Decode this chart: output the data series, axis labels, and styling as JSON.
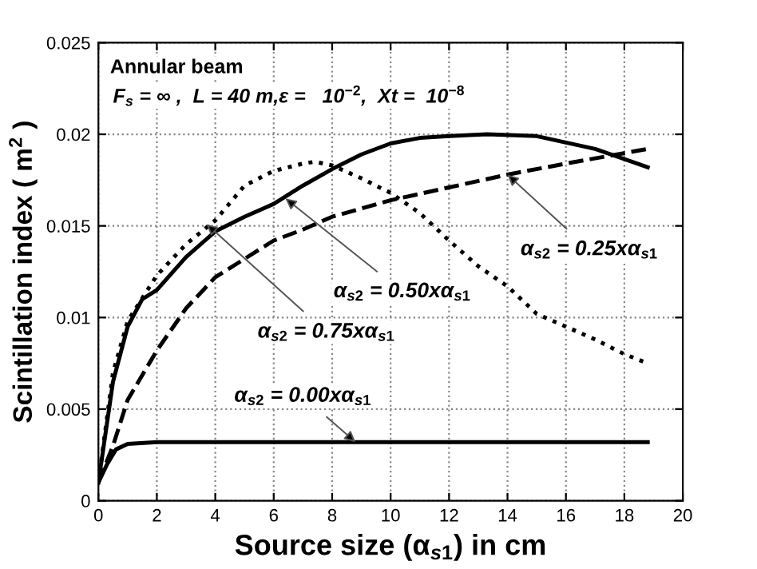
{
  "chart_data": {
    "type": "line",
    "xlabel": "Source size (α$_{s1}$) in cm",
    "ylabel": "Scintillation index ( m$^{2}$ )",
    "annotations": [
      "Annular beam",
      "F$_{s}$ = ∞ ,  L = 40 m,ε =   10$^{−2}$,  Xt =  10$^{−8}$",
      {
        "text": "α$_{s2}$ = 0.25xα$_{s1}$",
        "x": 14,
        "y": 0.0178
      },
      {
        "text": "α$_{s2}$ = 0.50xα$_{s1}$",
        "x": 6.4,
        "y": 0.0165
      },
      {
        "text": "α$_{s2}$ = 0.75xα$_{s1}$",
        "x": 3.7,
        "y": 0.0151
      },
      {
        "text": "α$_{s2}$ = 0.00xα$_{s1}$",
        "x": 8.8,
        "y": 0.0032
      }
    ],
    "series": [
      {
        "color": "#000000",
        "line_style": "solid",
        "x": [
          0,
          0.5,
          1,
          1.5,
          2,
          3,
          4,
          5,
          6,
          7,
          8,
          9,
          10,
          11,
          12,
          13.3,
          15,
          17,
          18.8
        ],
        "values": [
          0.001,
          0.0065,
          0.0095,
          0.011,
          0.0115,
          0.0133,
          0.0147,
          0.0155,
          0.0162,
          0.0172,
          0.0181,
          0.0189,
          0.0195,
          0.0198,
          0.0199,
          0.02,
          0.0199,
          0.0192,
          0.0182
        ]
      },
      {
        "color": "#000000",
        "line_style": "dotted",
        "x": [
          0,
          0.5,
          1,
          2,
          3,
          4,
          5,
          6,
          7,
          7.4,
          8,
          9,
          10,
          11,
          12,
          13,
          14,
          15,
          16,
          17,
          18,
          18.8
        ],
        "values": [
          0.001,
          0.007,
          0.0098,
          0.0123,
          0.014,
          0.0153,
          0.0172,
          0.018,
          0.0184,
          0.0185,
          0.0183,
          0.0176,
          0.0168,
          0.0157,
          0.0142,
          0.0128,
          0.0117,
          0.0102,
          0.0095,
          0.0088,
          0.008,
          0.0075
        ]
      },
      {
        "color": "#000000",
        "line_style": "dashed",
        "x": [
          0,
          0.5,
          1,
          2,
          3,
          4,
          5,
          6,
          7,
          8,
          10,
          12,
          14,
          16,
          18.8
        ],
        "values": [
          0.001,
          0.003,
          0.0055,
          0.0082,
          0.0105,
          0.0122,
          0.0132,
          0.0142,
          0.0148,
          0.0155,
          0.0164,
          0.0171,
          0.0178,
          0.0184,
          0.0192
        ]
      },
      {
        "color": "#000000",
        "line_style": "solid",
        "x": [
          0,
          0.3,
          0.6,
          1,
          2,
          18.8
        ],
        "values": [
          0.001,
          0.002,
          0.0028,
          0.0031,
          0.0032,
          0.0032
        ]
      }
    ],
    "xlim": [
      0,
      20
    ],
    "xticks": [
      0,
      2,
      4,
      6,
      8,
      10,
      12,
      14,
      16,
      18,
      20
    ],
    "ylim": [
      0,
      0.025
    ],
    "yticks": [
      0,
      0.005,
      0.01,
      0.015,
      0.02,
      0.025
    ],
    "grid": true,
    "legend": false
  }
}
